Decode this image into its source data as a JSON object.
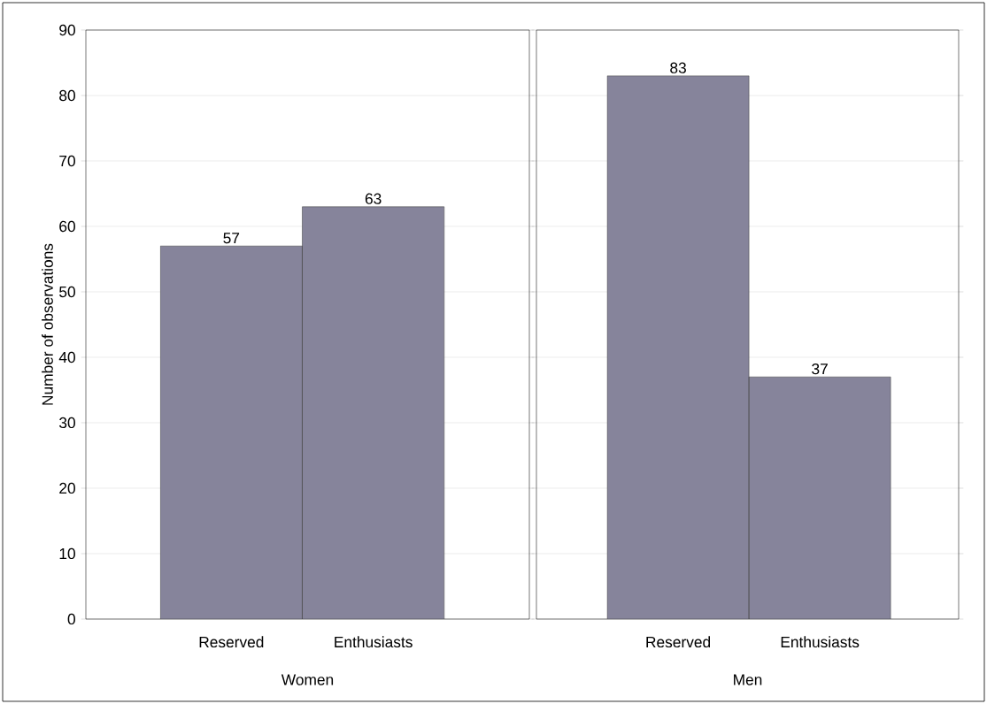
{
  "chart_data": [
    {
      "type": "bar",
      "categories": [
        "Reserved",
        "Enthusiasts"
      ],
      "values": [
        57,
        63
      ],
      "color": "#86849b",
      "xlabel": "Women",
      "ylabel": "Number of observations",
      "ylim": [
        0,
        90
      ],
      "yticks": [
        0,
        10,
        20,
        30,
        40,
        50,
        60,
        70,
        80,
        90
      ],
      "grid": "y",
      "data_labels": true
    },
    {
      "type": "bar",
      "categories": [
        "Reserved",
        "Enthusiasts"
      ],
      "values": [
        83,
        37
      ],
      "color": "#86849b",
      "xlabel": "Men",
      "ylim": [
        0,
        90
      ],
      "yticks": [
        0,
        10,
        20,
        30,
        40,
        50,
        60,
        70,
        80,
        90
      ],
      "grid": "y",
      "data_labels": true,
      "tick_labels": "x"
    }
  ]
}
